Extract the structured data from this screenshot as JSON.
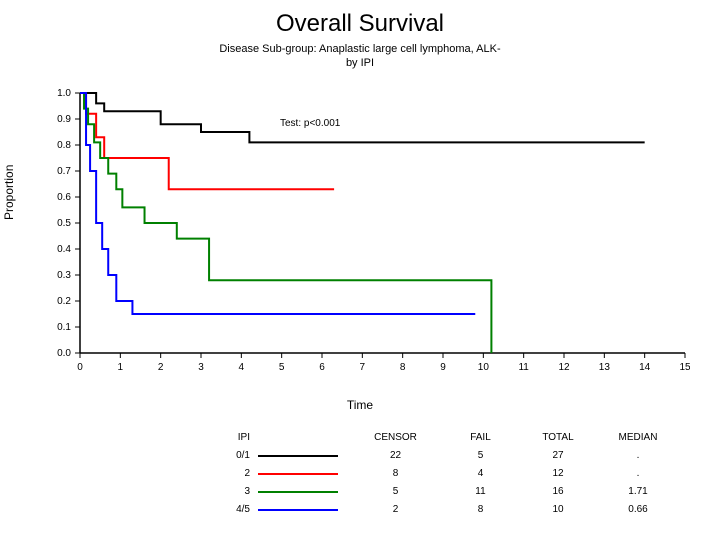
{
  "title": "Overall Survival",
  "subtitle": "Disease Sub-group: Anaplastic large cell lymphoma, ALK-\nby IPI",
  "chart": {
    "type": "step-line",
    "xlabel": "Time",
    "ylabel": "Proportion",
    "annotation": "Test: p<0.001",
    "xlim": [
      0,
      15
    ],
    "ylim": [
      0.0,
      1.0
    ],
    "xticks": [
      0,
      1,
      2,
      3,
      4,
      5,
      6,
      7,
      8,
      9,
      10,
      11,
      12,
      13,
      14,
      15
    ],
    "yticks": [
      0.0,
      0.1,
      0.2,
      0.3,
      0.4,
      0.5,
      0.6,
      0.7,
      0.8,
      0.9,
      1.0
    ],
    "axis_color": "#000000",
    "background_color": "#ffffff",
    "series": [
      {
        "name": "0/1",
        "color": "#000000",
        "width": 2,
        "points": [
          [
            0,
            1.0
          ],
          [
            0.4,
            0.96
          ],
          [
            0.6,
            0.93
          ],
          [
            2.0,
            0.88
          ],
          [
            3.0,
            0.85
          ],
          [
            4.2,
            0.81
          ],
          [
            14,
            0.81
          ]
        ]
      },
      {
        "name": "2",
        "color": "#ff0000",
        "width": 2,
        "points": [
          [
            0,
            1.0
          ],
          [
            0.15,
            0.92
          ],
          [
            0.4,
            0.83
          ],
          [
            0.6,
            0.75
          ],
          [
            2.2,
            0.63
          ],
          [
            6.3,
            0.63
          ]
        ]
      },
      {
        "name": "3",
        "color": "#008000",
        "width": 2,
        "points": [
          [
            0,
            1.0
          ],
          [
            0.1,
            0.94
          ],
          [
            0.2,
            0.88
          ],
          [
            0.35,
            0.81
          ],
          [
            0.5,
            0.75
          ],
          [
            0.7,
            0.69
          ],
          [
            0.9,
            0.63
          ],
          [
            1.05,
            0.56
          ],
          [
            1.6,
            0.5
          ],
          [
            2.4,
            0.44
          ],
          [
            3.2,
            0.28
          ],
          [
            10.0,
            0.28
          ],
          [
            10.2,
            0.0
          ]
        ]
      },
      {
        "name": "4/5",
        "color": "#0000ff",
        "width": 2,
        "points": [
          [
            0,
            1.0
          ],
          [
            0.15,
            0.8
          ],
          [
            0.25,
            0.7
          ],
          [
            0.4,
            0.5
          ],
          [
            0.55,
            0.4
          ],
          [
            0.7,
            0.3
          ],
          [
            0.9,
            0.2
          ],
          [
            1.3,
            0.15
          ],
          [
            9.8,
            0.15
          ]
        ]
      }
    ]
  },
  "legend": {
    "headers": {
      "ipi": "IPI",
      "censor": "CENSOR",
      "fail": "FAIL",
      "total": "TOTAL",
      "median": "MEDIAN"
    },
    "rows": [
      {
        "ipi": "0/1",
        "color": "#000000",
        "censor": "22",
        "fail": "5",
        "total": "27",
        "median": "."
      },
      {
        "ipi": "2",
        "color": "#ff0000",
        "censor": "8",
        "fail": "4",
        "total": "12",
        "median": "."
      },
      {
        "ipi": "3",
        "color": "#008000",
        "censor": "5",
        "fail": "11",
        "total": "16",
        "median": "1.71"
      },
      {
        "ipi": "4/5",
        "color": "#0000ff",
        "censor": "2",
        "fail": "8",
        "total": "10",
        "median": "0.66"
      }
    ]
  }
}
